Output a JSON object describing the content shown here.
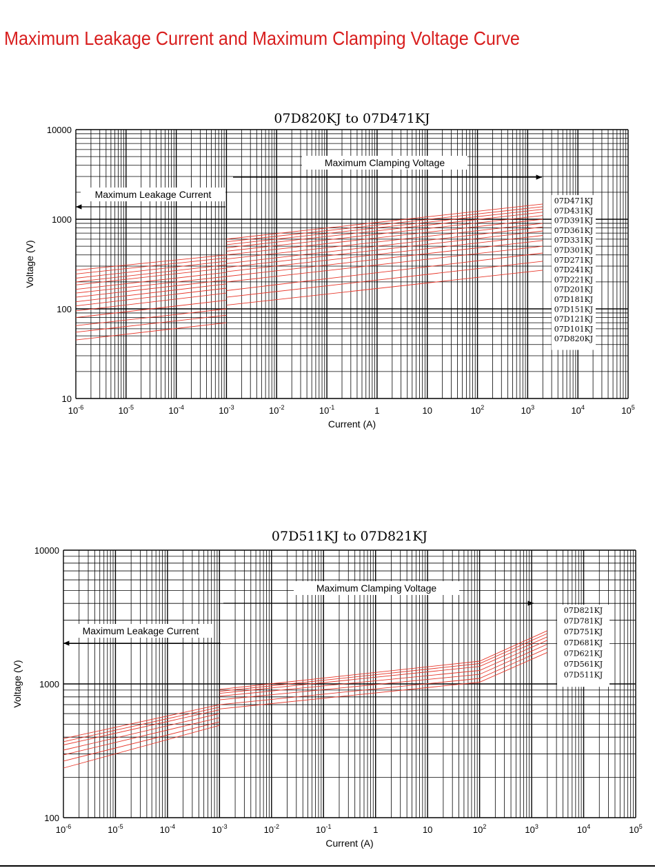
{
  "page": {
    "title": "Maximum Leakage Current and Maximum Clamping Voltage Curve"
  },
  "chart_data": [
    {
      "type": "line",
      "title": "07D820KJ to 07D471KJ",
      "xlabel": "Current (A)",
      "ylabel": "Voltage (V)",
      "xscale": "log",
      "yscale": "log",
      "xlim": [
        1e-06,
        100000
      ],
      "ylim": [
        10,
        10000
      ],
      "x_tick_labels": [
        "10-6",
        "10-5",
        "10-4",
        "10-3",
        "10-2",
        "10-1",
        "1",
        "10",
        "102",
        "103",
        "104",
        "105"
      ],
      "y_tick_labels": [
        "10000",
        "1000",
        "100",
        "10"
      ],
      "grid": true,
      "annotations": {
        "leakage": "Maximum Leakage Current",
        "clamping": "Maximum Clamping Voltage"
      },
      "legend_placement": "right",
      "series_color": "#e8372a",
      "leakage_region": {
        "x_range": [
          1e-06,
          0.001
        ]
      },
      "clamping_region": {
        "x_range": [
          0.001,
          2000
        ]
      },
      "series": [
        {
          "name": "07D471KJ",
          "leakage_v": [
            270,
            400
          ],
          "clamp_v": [
            600,
            1480
          ]
        },
        {
          "name": "07D431KJ",
          "leakage_v": [
            245,
            370
          ],
          "clamp_v": [
            560,
            1380
          ]
        },
        {
          "name": "07D391KJ",
          "leakage_v": [
            220,
            340
          ],
          "clamp_v": [
            520,
            1290
          ]
        },
        {
          "name": "07D361KJ",
          "leakage_v": [
            200,
            310
          ],
          "clamp_v": [
            480,
            1200
          ]
        },
        {
          "name": "07D331KJ",
          "leakage_v": [
            185,
            285
          ],
          "clamp_v": [
            440,
            1100
          ]
        },
        {
          "name": "07D301KJ",
          "leakage_v": [
            165,
            255
          ],
          "clamp_v": [
            400,
            1000
          ]
        },
        {
          "name": "07D271KJ",
          "leakage_v": [
            150,
            230
          ],
          "clamp_v": [
            360,
            900
          ]
        },
        {
          "name": "07D241KJ",
          "leakage_v": [
            135,
            210
          ],
          "clamp_v": [
            320,
            820
          ]
        },
        {
          "name": "07D221KJ",
          "leakage_v": [
            120,
            190
          ],
          "clamp_v": [
            290,
            740
          ]
        },
        {
          "name": "07D201KJ",
          "leakage_v": [
            108,
            170
          ],
          "clamp_v": [
            260,
            660
          ]
        },
        {
          "name": "07D181KJ",
          "leakage_v": [
            95,
            150
          ],
          "clamp_v": [
            230,
            580
          ]
        },
        {
          "name": "07D151KJ",
          "leakage_v": [
            80,
            125
          ],
          "clamp_v": [
            200,
            500
          ]
        },
        {
          "name": "07D121KJ",
          "leakage_v": [
            65,
            100
          ],
          "clamp_v": [
            160,
            420
          ]
        },
        {
          "name": "07D101KJ",
          "leakage_v": [
            55,
            85
          ],
          "clamp_v": [
            135,
            340
          ]
        },
        {
          "name": "07D820KJ",
          "leakage_v": [
            45,
            70
          ],
          "clamp_v": [
            110,
            270
          ]
        }
      ]
    },
    {
      "type": "line",
      "title": "07D511KJ to 07D821KJ",
      "xlabel": "Current (A)",
      "ylabel": "Voltage (V)",
      "xscale": "log",
      "yscale": "log",
      "xlim": [
        1e-06,
        100000
      ],
      "ylim": [
        100,
        10000
      ],
      "x_tick_labels": [
        "10-6",
        "10-5",
        "10-4",
        "10-3",
        "10-2",
        "10-1",
        "1",
        "10",
        "102",
        "103",
        "104",
        "105"
      ],
      "y_tick_labels": [
        "10000",
        "1000",
        "100"
      ],
      "grid": true,
      "annotations": {
        "leakage": "Maximum Leakage Current",
        "clamping": "Maximum Clamping Voltage"
      },
      "legend_placement": "right",
      "series_color": "#e8372a",
      "leakage_region": {
        "x_range": [
          1e-06,
          0.001
        ]
      },
      "clamping_region": {
        "x_range": [
          0.001,
          2000
        ]
      },
      "series": [
        {
          "name": "07D821KJ",
          "leakage_v": [
            390,
            700
          ],
          "clamp_v": [
            910,
            1480,
            2500
          ]
        },
        {
          "name": "07D781KJ",
          "leakage_v": [
            370,
            670
          ],
          "clamp_v": [
            880,
            1420,
            2380
          ]
        },
        {
          "name": "07D751KJ",
          "leakage_v": [
            350,
            640
          ],
          "clamp_v": [
            850,
            1350,
            2250
          ]
        },
        {
          "name": "07D681KJ",
          "leakage_v": [
            320,
            600
          ],
          "clamp_v": [
            810,
            1260,
            2120
          ]
        },
        {
          "name": "07D621KJ",
          "leakage_v": [
            295,
            560
          ],
          "clamp_v": [
            760,
            1180,
            1980
          ]
        },
        {
          "name": "07D561KJ",
          "leakage_v": [
            265,
            520
          ],
          "clamp_v": [
            700,
            1100,
            1850
          ]
        },
        {
          "name": "07D511KJ",
          "leakage_v": [
            235,
            490
          ],
          "clamp_v": [
            650,
            1030,
            1720
          ]
        }
      ]
    }
  ]
}
